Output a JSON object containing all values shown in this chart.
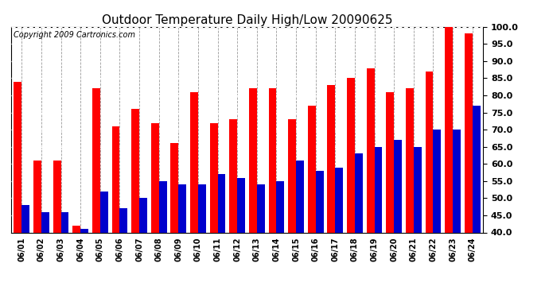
{
  "title": "Outdoor Temperature Daily High/Low 20090625",
  "copyright": "Copyright 2009 Cartronics.com",
  "dates": [
    "06/01",
    "06/02",
    "06/03",
    "06/04",
    "06/05",
    "06/06",
    "06/07",
    "06/08",
    "06/09",
    "06/10",
    "06/11",
    "06/12",
    "06/13",
    "06/14",
    "06/15",
    "06/16",
    "06/17",
    "06/18",
    "06/19",
    "06/20",
    "06/21",
    "06/22",
    "06/23",
    "06/24"
  ],
  "highs": [
    84,
    61,
    61,
    42,
    82,
    71,
    76,
    72,
    66,
    81,
    72,
    73,
    82,
    82,
    73,
    77,
    83,
    85,
    88,
    81,
    82,
    87,
    101,
    98
  ],
  "lows": [
    48,
    46,
    46,
    41,
    52,
    47,
    50,
    55,
    54,
    54,
    57,
    56,
    54,
    55,
    61,
    58,
    59,
    63,
    65,
    67,
    65,
    70,
    70,
    77
  ],
  "high_color": "#ff0000",
  "low_color": "#0000cc",
  "bg_color": "#ffffff",
  "grid_color": "#999999",
  "ylim_min": 40,
  "ylim_max": 100,
  "ytick_interval": 5,
  "bar_width": 0.4,
  "title_fontsize": 11,
  "copyright_fontsize": 7
}
